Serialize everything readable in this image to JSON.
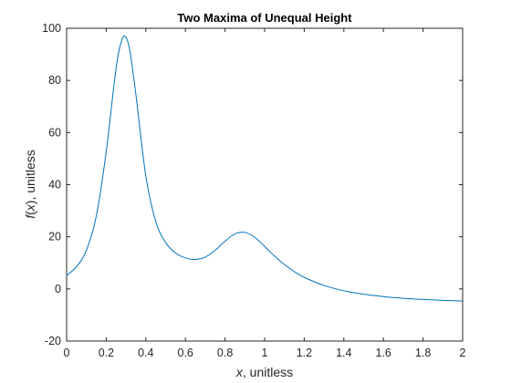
{
  "chart_data": {
    "type": "line",
    "title": "Two Maxima of Unequal Height",
    "xlabel_var": "x",
    "xlabel_rest": ", unitless",
    "ylabel_func": "f",
    "ylabel_open": "(",
    "ylabel_var": "x",
    "ylabel_close": ")",
    "ylabel_rest": ", unitless",
    "xlim": [
      0,
      2
    ],
    "ylim": [
      -20,
      100
    ],
    "x_ticks": [
      0,
      0.2,
      0.4,
      0.6,
      0.8,
      1,
      1.2,
      1.4,
      1.6,
      1.8,
      2
    ],
    "x_tick_labels": [
      "0",
      "0.2",
      "0.4",
      "0.6",
      "0.8",
      "1",
      "1.2",
      "1.4",
      "1.6",
      "1.8",
      "2"
    ],
    "y_ticks": [
      -20,
      0,
      20,
      40,
      60,
      80,
      100
    ],
    "y_tick_labels": [
      "-20",
      "0",
      "20",
      "40",
      "60",
      "80",
      "100"
    ],
    "grid": false,
    "line_color": "#0072BD",
    "series": [
      {
        "x": [
          0,
          0.05,
          0.1,
          0.15,
          0.2,
          0.25,
          0.28,
          0.3,
          0.32,
          0.35,
          0.4,
          0.45,
          0.5,
          0.55,
          0.6,
          0.65,
          0.7,
          0.75,
          0.8,
          0.85,
          0.9,
          0.95,
          1.0,
          1.05,
          1.1,
          1.15,
          1.2,
          1.3,
          1.4,
          1.5,
          1.6,
          1.7,
          1.8,
          1.9,
          2.0
        ],
        "values": [
          5.18,
          8.52,
          14.8,
          28.0,
          52.7,
          84.8,
          95.7,
          96.5,
          91.2,
          74.5,
          43.3,
          25.9,
          17.8,
          13.8,
          11.9,
          11.3,
          12.2,
          14.8,
          18.3,
          21.1,
          21.7,
          19.8,
          16.3,
          12.6,
          9.34,
          6.63,
          4.45,
          1.32,
          -0.69,
          -2.02,
          -2.93,
          -3.58,
          -4.04,
          -4.39,
          -4.66
        ]
      }
    ]
  }
}
